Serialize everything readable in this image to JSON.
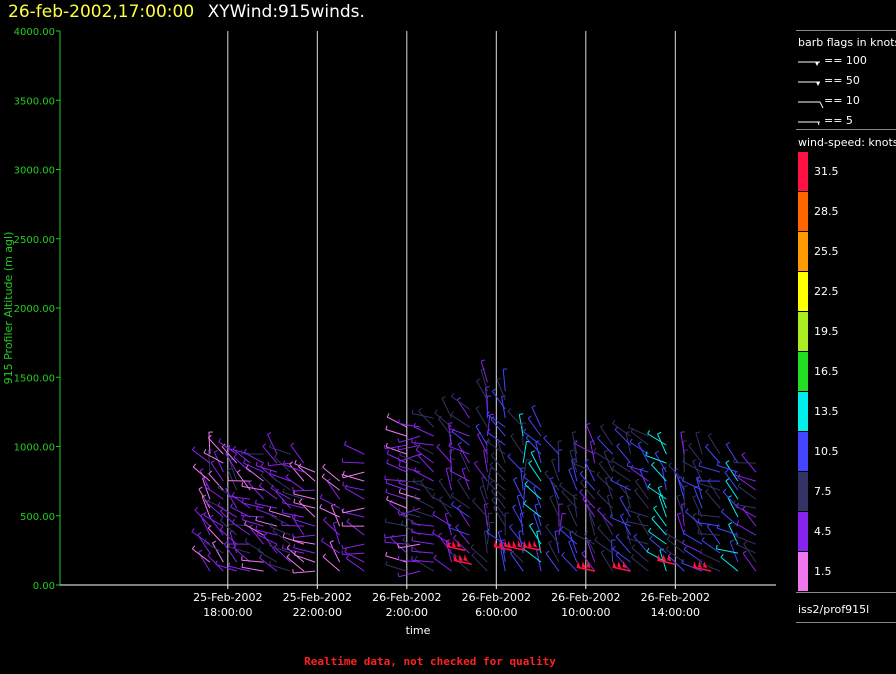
{
  "header": {
    "datetime": "26-feb-2002,17:00:00",
    "product": "XYWind:915winds."
  },
  "legend": {
    "barb_title": "barb flags in knots",
    "barbs": [
      {
        "label": "== 100"
      },
      {
        "label": "== 50"
      },
      {
        "label": "== 10"
      },
      {
        "label": "== 5"
      }
    ],
    "speed_title": "wind-speed: knots",
    "scale": [
      {
        "label": "31.5",
        "color": "#ff1144"
      },
      {
        "label": "28.5",
        "color": "#ff6600"
      },
      {
        "label": "25.5",
        "color": "#ff9900"
      },
      {
        "label": "22.5",
        "color": "#ffff00"
      },
      {
        "label": "19.5",
        "color": "#aaee22"
      },
      {
        "label": "16.5",
        "color": "#22dd22"
      },
      {
        "label": "13.5",
        "color": "#00eeee"
      },
      {
        "label": "10.5",
        "color": "#4444ff"
      },
      {
        "label": "7.5",
        "color": "#333366"
      },
      {
        "label": "4.5",
        "color": "#8822ee"
      },
      {
        "label": "1.5",
        "color": "#ee77ee"
      }
    ]
  },
  "footer": {
    "station": "iss2/prof915l",
    "quality_note": "Realtime data, not checked for quality"
  },
  "chart_data": {
    "type": "scatter",
    "title": "",
    "xlabel": "time",
    "ylabel": "915 Profiler Altitude (m agl)",
    "ylim": [
      0,
      4000
    ],
    "yticks": [
      "0.00",
      "500.00",
      "1000.00",
      "1500.00",
      "2000.00",
      "2500.00",
      "3000.00",
      "3500.00",
      "4000.00"
    ],
    "x_hours_range": [
      -7.5,
      24.5
    ],
    "xticks": [
      {
        "hour": 0,
        "line1": "25-Feb-2002",
        "line2": "18:00:00"
      },
      {
        "hour": 4,
        "line1": "25-Feb-2002",
        "line2": "22:00:00"
      },
      {
        "hour": 8,
        "line1": "26-Feb-2002",
        "line2": "2:00:00"
      },
      {
        "hour": 12,
        "line1": "26-Feb-2002",
        "line2": "6:00:00"
      },
      {
        "hour": 16,
        "line1": "26-Feb-2002",
        "line2": "10:00:00"
      },
      {
        "hour": 20,
        "line1": "26-Feb-2002",
        "line2": "14:00:00"
      }
    ],
    "grid": "vertical",
    "legend_position": "right",
    "profiles": [
      {
        "hour": -0.8,
        "top": 1000,
        "dir": 330,
        "speed": 4
      },
      {
        "hour": -0.2,
        "top": 1000,
        "dir": 320,
        "speed": 4
      },
      {
        "hour": 0.4,
        "top": 1000,
        "dir": 315,
        "speed": 5
      },
      {
        "hour": 1.0,
        "top": 950,
        "dir": 300,
        "speed": 4
      },
      {
        "hour": 1.6,
        "top": 950,
        "dir": 300,
        "speed": 5
      },
      {
        "hour": 2.2,
        "top": 950,
        "dir": 310,
        "speed": 4
      },
      {
        "hour": 2.8,
        "top": 950,
        "dir": 290,
        "speed": 5
      },
      {
        "hour": 3.4,
        "top": 900,
        "dir": 300,
        "speed": 4
      },
      {
        "hour": 3.9,
        "top": 850,
        "dir": 290,
        "speed": 4
      },
      {
        "hour": 5.0,
        "top": 800,
        "dir": 320,
        "speed": 3
      },
      {
        "hour": 6.1,
        "top": 1000,
        "dir": 280,
        "speed": 3
      },
      {
        "hour": 8.0,
        "top": 1150,
        "dir": 290,
        "speed": 5
      },
      {
        "hour": 8.6,
        "top": 1150,
        "dir": 280,
        "speed": 5
      },
      {
        "hour": 9.2,
        "top": 1250,
        "dir": 300,
        "speed": 6
      },
      {
        "hour": 10.0,
        "top": 1250,
        "dir": 330,
        "speed": 6
      },
      {
        "hour": 10.8,
        "top": 1300,
        "dir": 320,
        "speed": 7
      },
      {
        "hour": 11.6,
        "top": 1500,
        "dir": 340,
        "speed": 7
      },
      {
        "hour": 12.4,
        "top": 1450,
        "dir": 330,
        "speed": 9
      },
      {
        "hour": 13.2,
        "top": 1200,
        "dir": 340,
        "speed": 10
      },
      {
        "hour": 14.0,
        "top": 1150,
        "dir": 330,
        "speed": 12
      },
      {
        "hour": 14.8,
        "top": 1000,
        "dir": 340,
        "speed": 8
      },
      {
        "hour": 15.6,
        "top": 1000,
        "dir": 330,
        "speed": 8
      },
      {
        "hour": 16.4,
        "top": 1050,
        "dir": 320,
        "speed": 7
      },
      {
        "hour": 17.2,
        "top": 1050,
        "dir": 330,
        "speed": 8
      },
      {
        "hour": 18.0,
        "top": 1100,
        "dir": 320,
        "speed": 9
      },
      {
        "hour": 18.8,
        "top": 1100,
        "dir": 310,
        "speed": 8
      },
      {
        "hour": 19.6,
        "top": 1050,
        "dir": 320,
        "speed": 12
      },
      {
        "hour": 20.4,
        "top": 1000,
        "dir": 330,
        "speed": 8
      },
      {
        "hour": 21.2,
        "top": 950,
        "dir": 320,
        "speed": 8
      },
      {
        "hour": 22.0,
        "top": 950,
        "dir": 300,
        "speed": 9
      },
      {
        "hour": 22.8,
        "top": 900,
        "dir": 310,
        "speed": 12
      },
      {
        "hour": 23.6,
        "top": 900,
        "dir": 300,
        "speed": 7
      }
    ],
    "strong_low_level": [
      {
        "hour": 10.6,
        "alt": 250,
        "speed": 30
      },
      {
        "hour": 10.9,
        "alt": 150,
        "speed": 30
      },
      {
        "hour": 12.7,
        "alt": 250,
        "speed": 31
      },
      {
        "hour": 13.3,
        "alt": 250,
        "speed": 31
      },
      {
        "hour": 14.0,
        "alt": 250,
        "speed": 31
      },
      {
        "hour": 16.4,
        "alt": 100,
        "speed": 31
      },
      {
        "hour": 18.0,
        "alt": 100,
        "speed": 31
      },
      {
        "hour": 20.0,
        "alt": 150,
        "speed": 31
      },
      {
        "hour": 21.6,
        "alt": 100,
        "speed": 31
      }
    ]
  }
}
